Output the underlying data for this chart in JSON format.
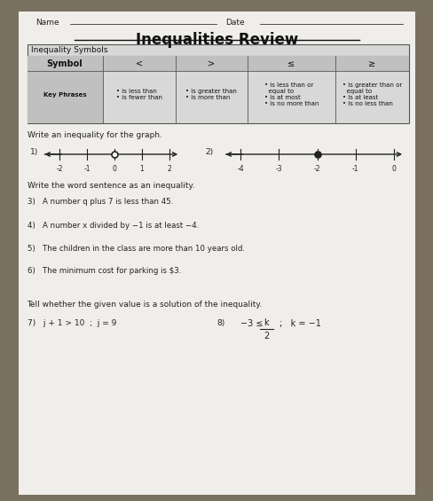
{
  "title": "Inequalities Review",
  "name_label": "Name",
  "date_label": "Date",
  "bg_color": "#7a7060",
  "paper_color": "#f0eeea",
  "table_title": "Inequality Symbols",
  "table_headers": [
    "Symbol",
    "<",
    ">",
    "≤",
    "≥"
  ],
  "table_row1": [
    "Key Phrases",
    "• is less than\n• is fewer than",
    "• is greater than\n• is more than",
    "• is less than or\n  equal to\n• is at most\n• is no more than",
    "• is greater than or\n  equal to\n• is at least\n• is no less than"
  ],
  "section1": "Write an inequality for the graph.",
  "num1_label": "1)",
  "num1_ticks": [
    -2,
    -1,
    0,
    1,
    2
  ],
  "num2_label": "2)",
  "num2_ticks": [
    -4,
    -3,
    -2,
    -1,
    0
  ],
  "section2": "Write the word sentence as an inequality.",
  "q3": "3)   A number q plus 7 is less than 45.",
  "q4": "4)   A number x divided by −1 is at least −4.",
  "q5": "5)   The children in the class are more than 10 years old.",
  "q6": "6)   The minimum cost for parking is $3.",
  "section3": "Tell whether the given value is a solution of the inequality.",
  "q7": "7)   j + 1 > 10  ;  j = 9",
  "q8_left": "−3 ≤",
  "q8_frac_num": "k",
  "q8_frac_den": "2",
  "q8_right": ";   k = −1"
}
